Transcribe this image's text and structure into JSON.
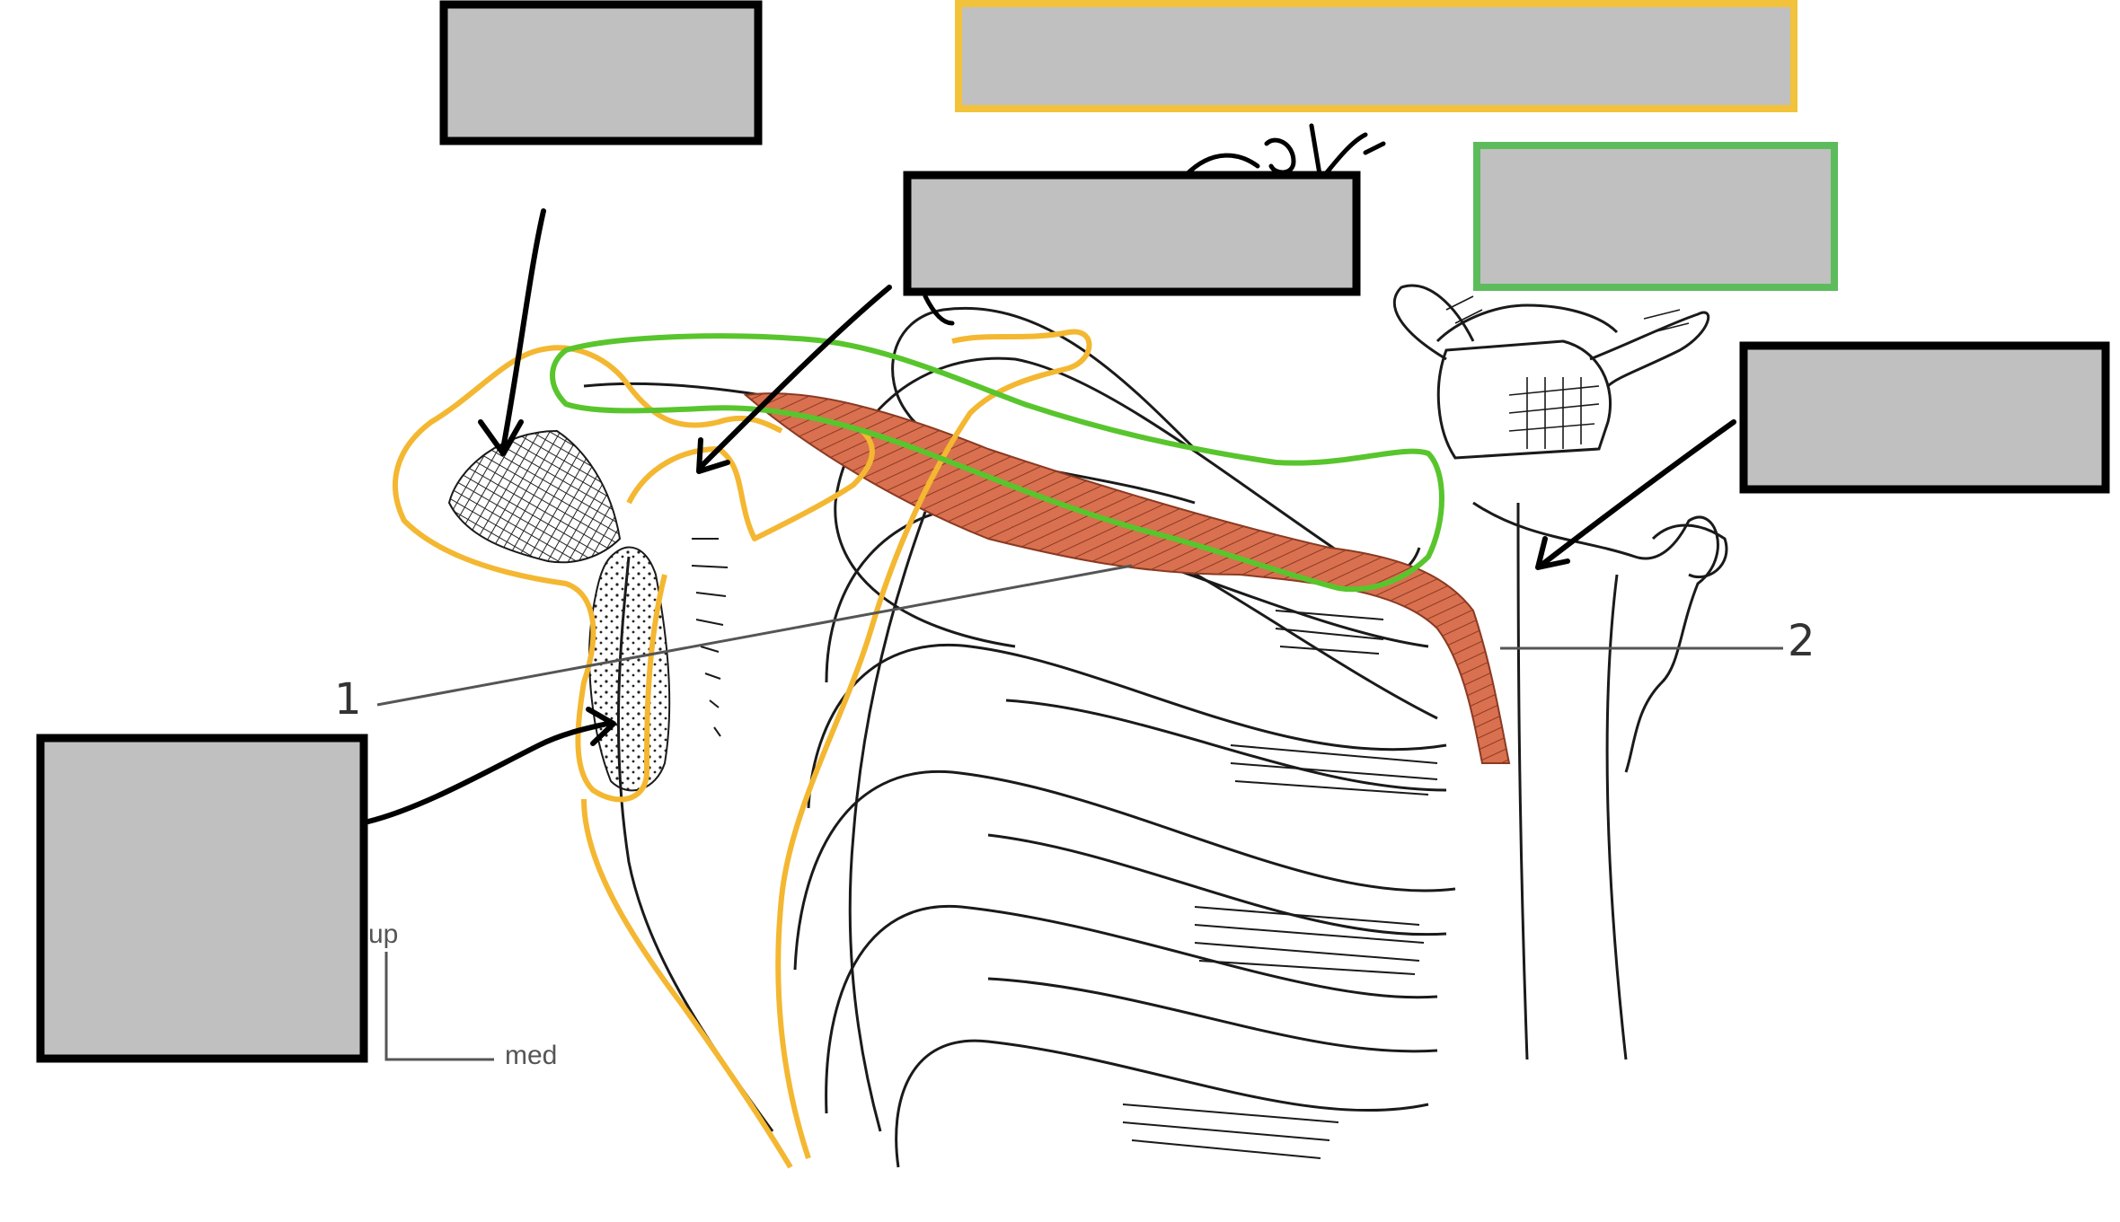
{
  "callouts": [
    {
      "number": "1"
    },
    {
      "number": "2"
    }
  ],
  "orientation": {
    "up_label": "up",
    "medial_label": "med"
  },
  "answer_boxes": [
    {
      "name": "top-left-box",
      "outline": "#000000",
      "fill": "#c0c0c0"
    },
    {
      "name": "top-yellow-box",
      "outline": "#f2c23a",
      "fill": "#c0c0c0"
    },
    {
      "name": "center-box",
      "outline": "#000000",
      "fill": "#c0c0c0"
    },
    {
      "name": "green-box",
      "outline": "#5cbc5c",
      "fill": "#c0c0c0"
    },
    {
      "name": "right-box",
      "outline": "#000000",
      "fill": "#c0c0c0"
    },
    {
      "name": "bottom-left-box",
      "outline": "#000000",
      "fill": "#c0c0c0"
    }
  ],
  "colors": {
    "outline_yellow": "#f4b731",
    "outline_green": "#58c52d",
    "muscle": "#d9704f",
    "line_art": "#1a1a1a",
    "box_fill": "#c0c0c0"
  }
}
